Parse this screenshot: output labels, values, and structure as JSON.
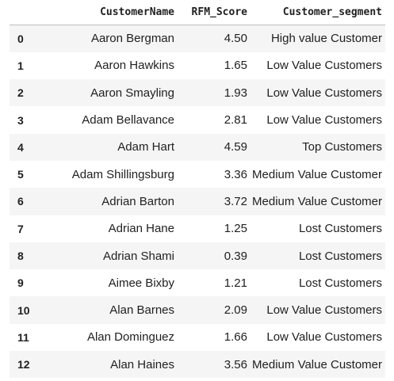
{
  "table": {
    "columns": [
      "CustomerName",
      "RFM_Score",
      "Customer_segment"
    ],
    "rows": [
      {
        "index": "0",
        "name": "Aaron Bergman",
        "rfm": "4.50",
        "segment": "High value Customer"
      },
      {
        "index": "1",
        "name": "Aaron Hawkins",
        "rfm": "1.65",
        "segment": "Low Value Customers"
      },
      {
        "index": "2",
        "name": "Aaron Smayling",
        "rfm": "1.93",
        "segment": "Low Value Customers"
      },
      {
        "index": "3",
        "name": "Adam Bellavance",
        "rfm": "2.81",
        "segment": "Low Value Customers"
      },
      {
        "index": "4",
        "name": "Adam Hart",
        "rfm": "4.59",
        "segment": "Top Customers"
      },
      {
        "index": "5",
        "name": "Adam Shillingsburg",
        "rfm": "3.36",
        "segment": "Medium Value Customer"
      },
      {
        "index": "6",
        "name": "Adrian Barton",
        "rfm": "3.72",
        "segment": "Medium Value Customer"
      },
      {
        "index": "7",
        "name": "Adrian Hane",
        "rfm": "1.25",
        "segment": "Lost Customers"
      },
      {
        "index": "8",
        "name": "Adrian Shami",
        "rfm": "0.39",
        "segment": "Lost Customers"
      },
      {
        "index": "9",
        "name": "Aimee Bixby",
        "rfm": "1.21",
        "segment": "Lost Customers"
      },
      {
        "index": "10",
        "name": "Alan Barnes",
        "rfm": "2.09",
        "segment": "Low Value Customers"
      },
      {
        "index": "11",
        "name": "Alan Dominguez",
        "rfm": "1.66",
        "segment": "Low Value Customers"
      },
      {
        "index": "12",
        "name": "Alan Haines",
        "rfm": "3.56",
        "segment": "Medium Value Customer"
      }
    ]
  }
}
